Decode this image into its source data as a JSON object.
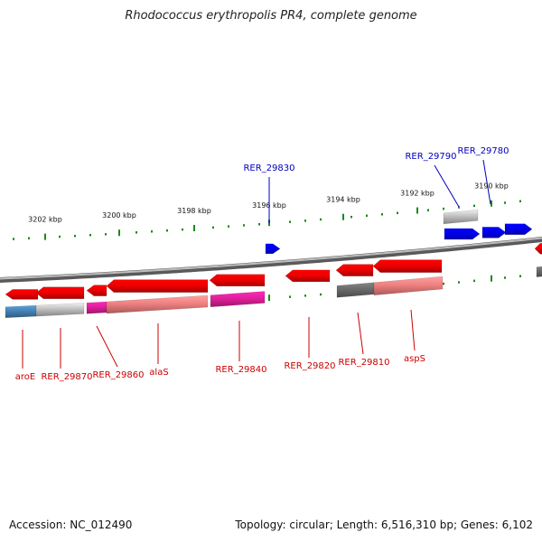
{
  "title": "Rhodococcus erythropolis PR4, complete genome",
  "footer": {
    "accession": "Accession: NC_012490",
    "summary": "Topology: circular; Length: 6,516,310 bp; Genes: 6,102"
  },
  "colors": {
    "backbone": "#7a7a7a",
    "tick": "#1a8a1a",
    "forward_gene": "#0000ee",
    "reverse_gene": "#ee0000",
    "label_forward": "#0000bb",
    "label_reverse": "#cc0000",
    "feature_gray": "#c0c0c0",
    "feature_darkgray": "#6a6a6a",
    "feature_pink": "#f08080",
    "feature_magenta": "#e0209a",
    "feature_blue": "#4682b4"
  },
  "scale_labels": [
    "3202 kbp",
    "3200 kbp",
    "3198 kbp",
    "3196 kbp",
    "3194 kbp",
    "3192 kbp",
    "3190 kbp"
  ],
  "gene_labels": {
    "forward": [
      "RER_29830",
      "RER_29790",
      "RER_29780"
    ],
    "reverse": [
      "aroE",
      "RER_29870",
      "RER_29860",
      "alaS",
      "RER_29840",
      "RER_29820",
      "RER_29810",
      "aspS"
    ]
  }
}
